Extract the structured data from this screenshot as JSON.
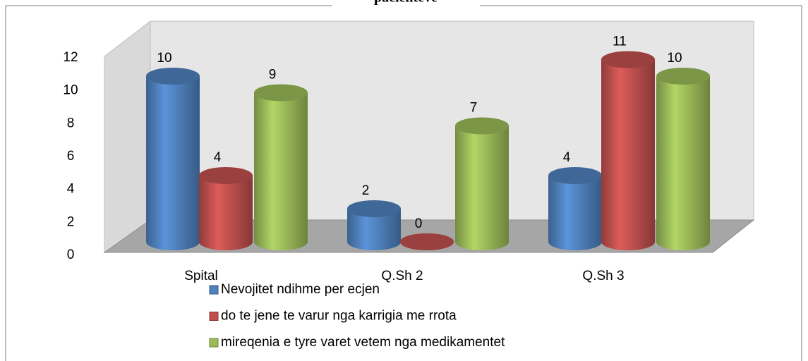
{
  "chart_data": {
    "type": "bar3d",
    "title": "pacienteve",
    "categories": [
      "Spital",
      "Q.Sh 2",
      "Q.Sh 3"
    ],
    "series": [
      {
        "name": "Nevojitet ndihme per ecjen",
        "color": "#4f81bd",
        "values": [
          10,
          2,
          4
        ]
      },
      {
        "name": "do te jene te varur nga karrigia me rrota",
        "color": "#c0504d",
        "values": [
          4,
          0,
          11
        ]
      },
      {
        "name": "mireqenia e tyre varet vetem nga medikamentet",
        "color": "#9bbb59",
        "values": [
          9,
          7,
          10
        ]
      }
    ],
    "ylim": [
      0,
      12
    ],
    "yticks": [
      0,
      2,
      4,
      6,
      8,
      10,
      12
    ]
  }
}
